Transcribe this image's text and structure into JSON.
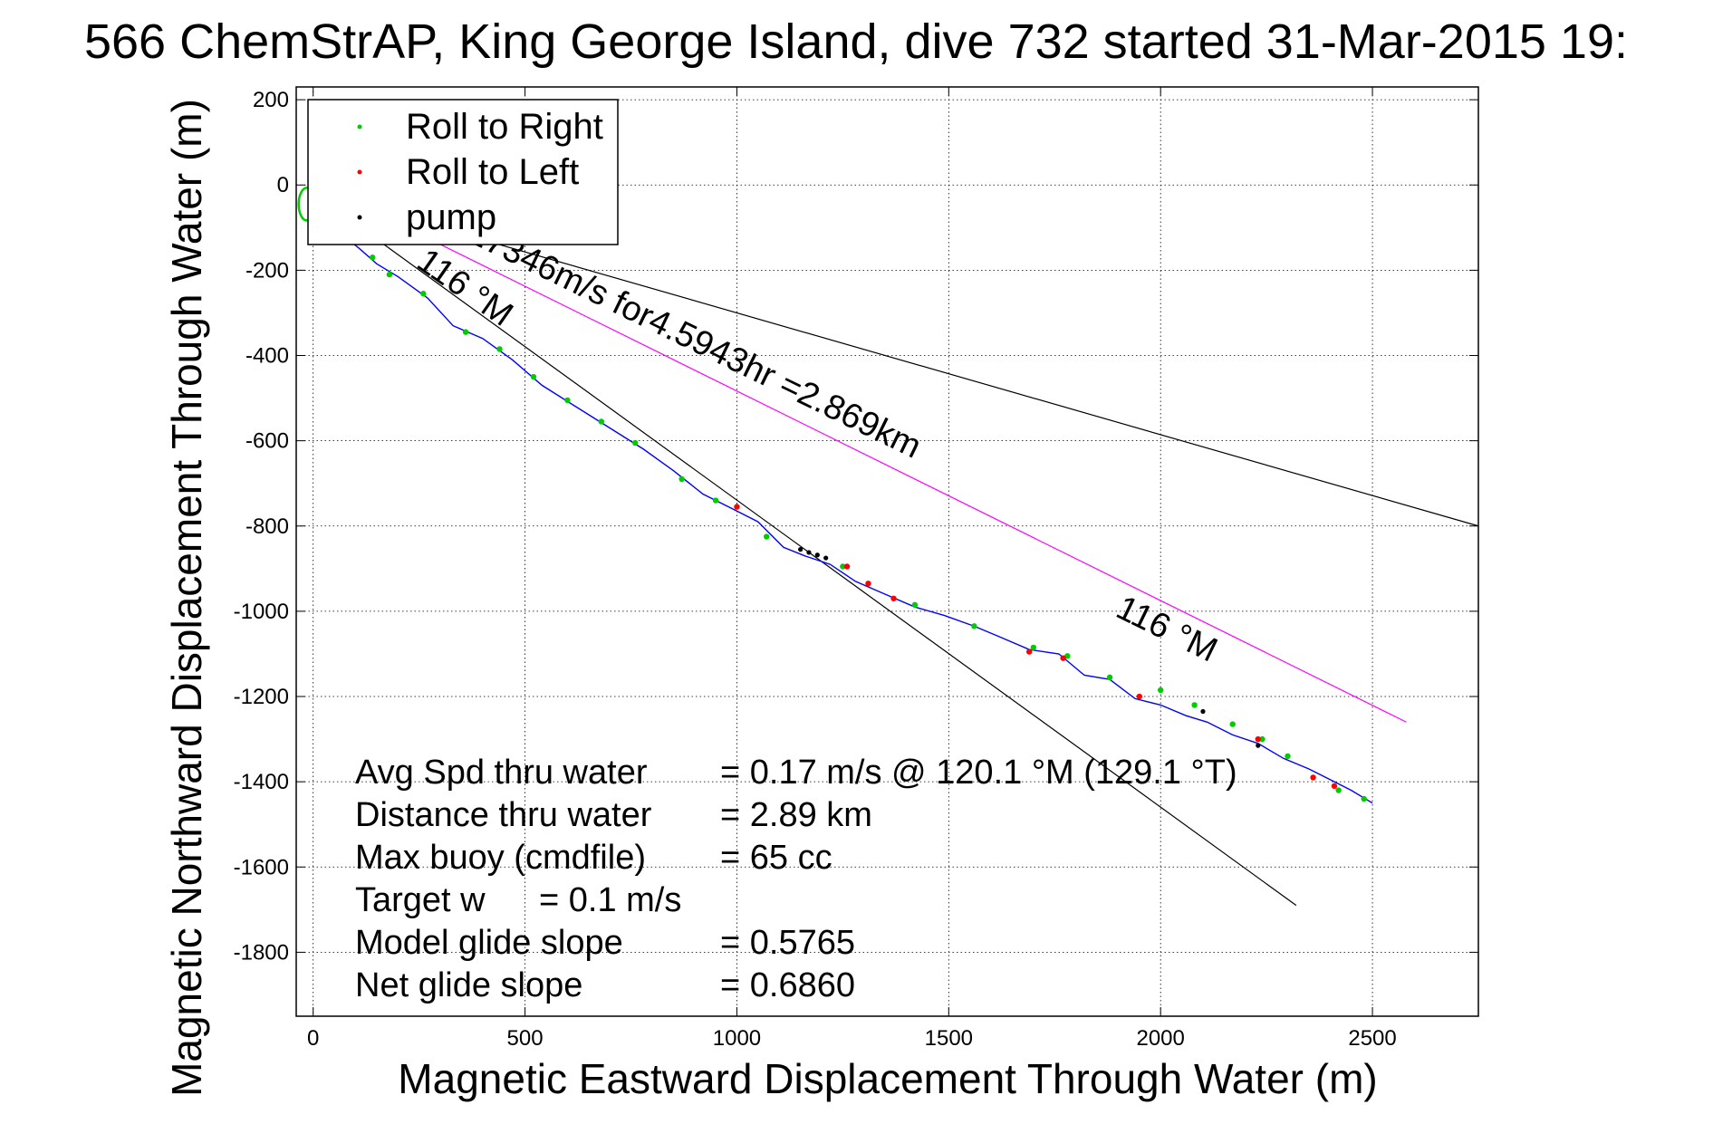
{
  "chart_data": {
    "type": "line",
    "title": "566 ChemStrAP, King George Island, dive 732 started 31-Mar-2015 19:",
    "xlabel": "Magnetic Eastward Displacement Through Water (m)",
    "ylabel": "Magnetic Northward Displacement Through Water (m)",
    "xlim": [
      -40,
      2750
    ],
    "ylim": [
      -1950,
      230
    ],
    "x_ticks": [
      0,
      500,
      1000,
      1500,
      2000,
      2500
    ],
    "x_tick_labels": [
      "0",
      "500",
      "1000",
      "1500",
      "2000",
      "2500"
    ],
    "y_ticks": [
      200,
      0,
      -200,
      -400,
      -600,
      -800,
      -1000,
      -1200,
      -1400,
      -1600,
      -1800
    ],
    "y_tick_labels": [
      "200",
      "0",
      "-200",
      "-400",
      "-600",
      "-800",
      "-1000",
      "-1200",
      "-1400",
      "-1600",
      "-1800"
    ],
    "grid": true,
    "legend_position": "top-left",
    "legend": [
      {
        "label": "Roll to Right",
        "color": "#00cc00"
      },
      {
        "label": "Roll to Left",
        "color": "#ff0000"
      },
      {
        "label": "pump",
        "color": "#000000"
      }
    ],
    "track": {
      "name": "track",
      "color": "#0000ff",
      "x": [
        0,
        60,
        110,
        150,
        200,
        270,
        330,
        400,
        470,
        540,
        620,
        700,
        780,
        850,
        920,
        990,
        1050,
        1110,
        1160,
        1220,
        1280,
        1350,
        1420,
        1490,
        1560,
        1620,
        1690,
        1760,
        1820,
        1880,
        1940,
        2000,
        2060,
        2110,
        2170,
        2230,
        2290,
        2350,
        2400,
        2450,
        2500
      ],
      "y": [
        -40,
        -110,
        -150,
        -185,
        -215,
        -265,
        -330,
        -360,
        -410,
        -470,
        -520,
        -570,
        -620,
        -670,
        -725,
        -760,
        -790,
        -850,
        -870,
        -890,
        -930,
        -960,
        -990,
        -1010,
        -1035,
        -1060,
        -1090,
        -1100,
        -1150,
        -1160,
        -1205,
        -1220,
        -1245,
        -1260,
        -1290,
        -1310,
        -1345,
        -1370,
        -1395,
        -1420,
        -1450
      ]
    },
    "roll_right_points": {
      "x": [
        70,
        140,
        180,
        260,
        360,
        440,
        520,
        600,
        680,
        760,
        870,
        950,
        1070,
        1250,
        1420,
        1560,
        1700,
        1780,
        1880,
        2000,
        2080,
        2170,
        2240,
        2300,
        2420,
        2480
      ],
      "y": [
        -130,
        -170,
        -210,
        -255,
        -345,
        -385,
        -450,
        -505,
        -555,
        -605,
        -690,
        -740,
        -825,
        -895,
        -985,
        -1035,
        -1085,
        -1105,
        -1155,
        -1185,
        -1220,
        -1265,
        -1300,
        -1340,
        -1420,
        -1440
      ]
    },
    "roll_left_points": {
      "x": [
        1000,
        1260,
        1310,
        1370,
        1690,
        1770,
        1950,
        2230,
        2360,
        2410
      ],
      "y": [
        -755,
        -895,
        -935,
        -970,
        -1095,
        -1110,
        -1200,
        -1300,
        -1390,
        -1410
      ]
    },
    "pump_points": {
      "x": [
        1150,
        1170,
        1190,
        1210,
        2100,
        2230
      ],
      "y": [
        -855,
        -862,
        -868,
        -875,
        -1235,
        -1315
      ]
    },
    "reference_lines": [
      {
        "name": "black-line-upper",
        "color": "#000000",
        "x": [
          300,
          2750
        ],
        "y": [
          -100,
          -800
        ]
      },
      {
        "name": "black-line-lower",
        "color": "#000000",
        "x": [
          140,
          2320
        ],
        "y": [
          -120,
          -1690
        ]
      },
      {
        "name": "magenta-line",
        "color": "#ff00ff",
        "x": [
          220,
          2580
        ],
        "y": [
          -100,
          -1260
        ]
      }
    ],
    "annotations": [
      {
        "text": "116 °M",
        "x": 240,
        "y": -190,
        "rotate": 35
      },
      {
        "text": ".17346m/s for4.5943hr =2.869km",
        "x": 340,
        "y": -120,
        "rotate": 26
      },
      {
        "text": "116 °M",
        "x": 1890,
        "y": -1010,
        "rotate": 26
      }
    ],
    "start_marker": {
      "x": -15,
      "y": -45,
      "color": "#00cc00"
    },
    "stats": [
      {
        "label": "Avg Spd thru water",
        "value": "=  0.17 m/s @ 120.1 °M (129.1 °T)"
      },
      {
        "label": "Distance thru water",
        "value": "=  2.89 km"
      },
      {
        "label": "Max buoy (cmdfile)",
        "value": "= 65 cc"
      },
      {
        "label": "Target w",
        "value": "= 0.1 m/s"
      },
      {
        "label": "Model glide slope",
        "value": "= 0.5765"
      },
      {
        "label": "Net glide slope",
        "value": "= 0.6860"
      }
    ]
  }
}
